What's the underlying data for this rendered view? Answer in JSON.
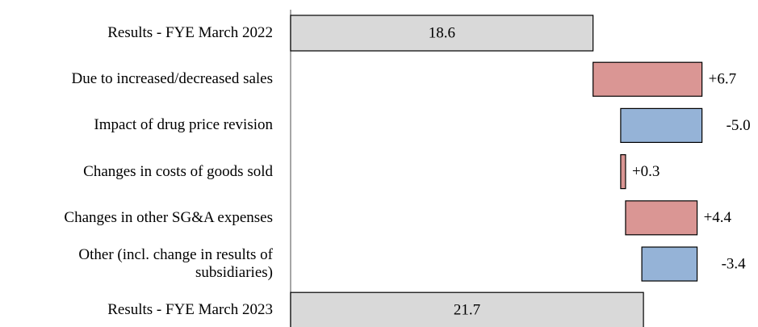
{
  "chart_data": {
    "type": "waterfall",
    "categories": [
      "Results - FYE March 2022",
      "Due to increased/decreased sales",
      "Impact of drug price revision",
      "Changes in costs of goods sold",
      "Changes in other SG&A expenses",
      "Other (incl. change in results of subsidiaries)",
      "Results - FYE March 2023"
    ],
    "values": [
      18.6,
      6.7,
      -5.0,
      0.3,
      4.4,
      -3.4,
      21.7
    ],
    "value_labels": [
      "18.6",
      "+6.7",
      "-5.0",
      "+0.3",
      "+4.4",
      "-3.4",
      "21.7"
    ],
    "measure": [
      "total",
      "relative",
      "relative",
      "relative",
      "relative",
      "relative",
      "total"
    ],
    "total_color": "#d9d9d9",
    "increase_color": "#da9694",
    "decrease_color": "#95b3d7",
    "xlim": [
      0,
      28
    ]
  }
}
